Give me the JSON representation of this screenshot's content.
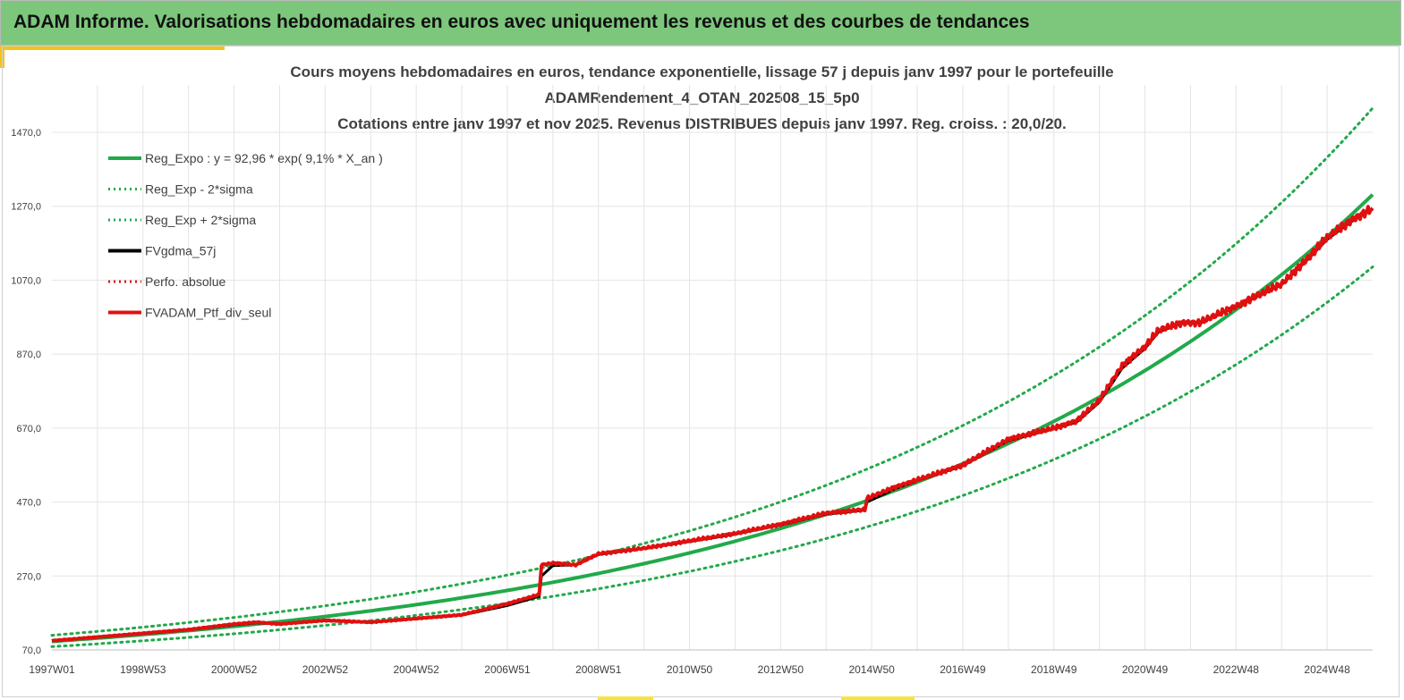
{
  "header": {
    "title": "ADAM Informe. Valorisations hebdomadaires en euros avec uniquement les revenus et des courbes de tendances"
  },
  "chart_data": {
    "type": "line",
    "title_lines": [
      "Cours moyens hebdomadaires  en euros, tendance exponentielle, lissage 57 j depuis janv 1997 pour le portefeuille",
      "ADAMRendement_4_OTAN_202508_15_5p0",
      "Cotations  entre janv 1997 et nov 2025. Revenus DISTRIBUES depuis janv 1997. Reg. croiss. : 20,0/20."
    ],
    "ylim": [
      70,
      1470
    ],
    "y_ticks": [
      "70,0",
      "270,0",
      "470,0",
      "670,0",
      "870,0",
      "1070,0",
      "1270,0",
      "1470,0"
    ],
    "y_tick_values": [
      70,
      270,
      470,
      670,
      870,
      1070,
      1270,
      1470
    ],
    "x_tick_labels": [
      "1997W01",
      "1998W53",
      "2000W52",
      "2002W52",
      "2004W52",
      "2006W51",
      "2008W51",
      "2010W50",
      "2012W50",
      "2014W50",
      "2016W49",
      "2018W49",
      "2020W49",
      "2022W48",
      "2024W48"
    ],
    "x_tick_years": [
      1997,
      1999,
      2001,
      2003,
      2005,
      2007,
      2009,
      2011,
      2013,
      2015,
      2017,
      2019,
      2021,
      2023,
      2025
    ],
    "xlim": [
      1997.0,
      2026.0
    ],
    "legend": [
      {
        "label": "Reg_Expo : y = 92,96 * exp( 9,1% *  X_an )",
        "color": "#22a94a",
        "style": "solid"
      },
      {
        "label": "Reg_Exp - 2*sigma",
        "color": "#22a94a",
        "style": "dotted"
      },
      {
        "label": "Reg_Exp + 2*sigma",
        "color": "#22a94a",
        "style": "dotted"
      },
      {
        "label": "FVgdma_57j",
        "color": "#000000",
        "style": "solid"
      },
      {
        "label": "Perfo. absolue",
        "color": "#e01010",
        "style": "dotted"
      },
      {
        "label": "FVADAM_Ptf_div_seul",
        "color": "#e01010",
        "style": "solid"
      }
    ],
    "regression": {
      "a": 92.96,
      "b": 0.091,
      "lower_factor": 0.85,
      "upper_factor": 1.18
    },
    "series": [
      {
        "name": "FVADAM_Ptf_div_seul",
        "x": [
          1997.0,
          1998.0,
          1999.0,
          2000.0,
          2001.0,
          2001.5,
          2002.0,
          2003.0,
          2004.0,
          2005.0,
          2006.0,
          2007.0,
          2007.7,
          2007.75,
          2008.0,
          2008.5,
          2009.0,
          2010.0,
          2011.0,
          2012.0,
          2013.0,
          2014.0,
          2014.85,
          2014.9,
          2015.5,
          2016.0,
          2017.0,
          2018.0,
          2019.0,
          2019.5,
          2020.0,
          2020.5,
          2021.0,
          2021.3,
          2021.8,
          2022.2,
          2023.0,
          2024.0,
          2024.5,
          2025.0,
          2025.5,
          2026.0
        ],
        "values": [
          95,
          105,
          115,
          125,
          140,
          145,
          140,
          150,
          145,
          155,
          165,
          195,
          220,
          300,
          305,
          300,
          330,
          345,
          365,
          385,
          410,
          440,
          450,
          480,
          510,
          530,
          570,
          640,
          670,
          690,
          745,
          840,
          890,
          935,
          955,
          955,
          1000,
          1060,
          1120,
          1185,
          1230,
          1265
        ]
      },
      {
        "name": "FVgdma_57j",
        "x": [
          1997.0,
          1998.0,
          1999.0,
          2000.0,
          2001.0,
          2001.5,
          2002.0,
          2003.0,
          2004.0,
          2005.0,
          2006.0,
          2007.0,
          2007.7,
          2007.75,
          2008.0,
          2008.5,
          2009.0,
          2010.0,
          2011.0,
          2012.0,
          2013.0,
          2014.0,
          2014.85,
          2014.9,
          2015.5,
          2016.0,
          2017.0,
          2018.0,
          2019.0,
          2019.5,
          2020.0,
          2020.5,
          2021.0,
          2021.3,
          2021.8,
          2022.2,
          2023.0,
          2024.0,
          2024.5,
          2025.0,
          2025.5,
          2026.0
        ],
        "values": [
          95,
          104,
          114,
          124,
          138,
          143,
          140,
          149,
          145,
          154,
          164,
          190,
          215,
          270,
          298,
          300,
          328,
          345,
          363,
          383,
          408,
          437,
          448,
          470,
          505,
          528,
          568,
          636,
          668,
          686,
          740,
          832,
          885,
          930,
          953,
          955,
          998,
          1058,
          1117,
          1180,
          1226,
          1262
        ]
      }
    ]
  }
}
